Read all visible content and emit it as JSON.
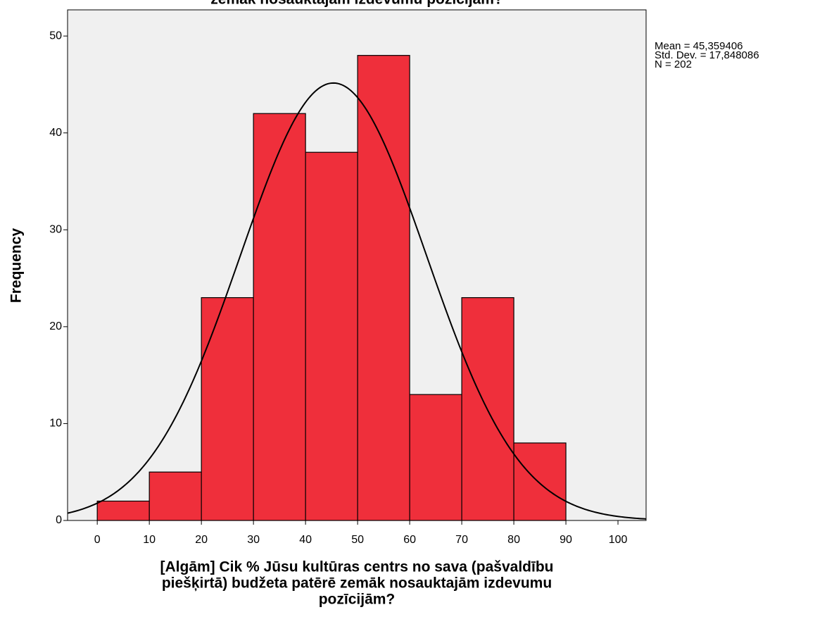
{
  "chart_data": {
    "type": "histogram",
    "title": "zemāk nosauktajām izdevumu pozīcijām?",
    "x_label": [
      "[Algām] Cik % Jūsu kultūras centrs no sava (pašvaldību",
      "piešķirtā) budžeta patērē zemāk nosauktajām izdevumu",
      "pozīcijām?"
    ],
    "y_label": "Frequency",
    "bins": [
      0,
      10,
      20,
      30,
      40,
      50,
      60,
      70,
      80,
      90
    ],
    "values": [
      2,
      5,
      23,
      42,
      38,
      48,
      13,
      23,
      8
    ],
    "color": "#ef2f3b",
    "xlim": [
      -5.7,
      105.4
    ],
    "xticks": [
      0,
      10,
      20,
      30,
      40,
      50,
      60,
      70,
      80,
      90,
      100
    ],
    "ylim": [
      0,
      52.7
    ],
    "yticks": [
      0,
      10,
      20,
      30,
      40,
      50
    ],
    "stats": [
      {
        "value": 45.359406,
        "label": "Mean = 45,359406"
      },
      {
        "value": 17.848086,
        "label": "Std. Dev. = 17,848086"
      },
      {
        "value": 202,
        "label": "N = 202"
      }
    ]
  }
}
